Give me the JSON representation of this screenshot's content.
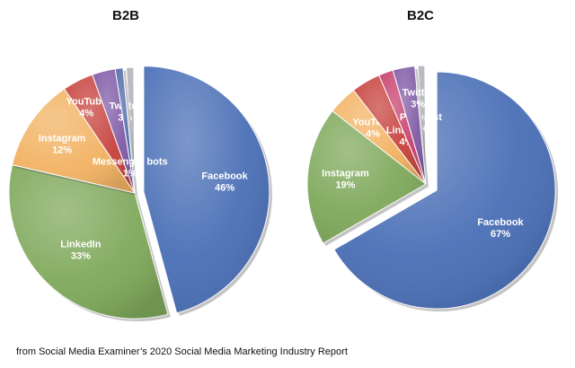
{
  "colors": {
    "facebook": "#4a6fb6",
    "linkedin": "#7ea85a",
    "instagram": "#f2b262",
    "youtube": "#c6413c",
    "twitter": "#7f59a5",
    "pinterest": "#c63e6c",
    "messenger": "#4c67a7",
    "other": "#b9bcc2"
  },
  "chart_data": [
    {
      "type": "pie",
      "title": "B2B",
      "slices": [
        {
          "label": "Facebook",
          "value": 46,
          "value_label": "46%",
          "color_key": "facebook"
        },
        {
          "label": "LinkedIn",
          "value": 33,
          "value_label": "33%",
          "color_key": "linkedin"
        },
        {
          "label": "Instagram",
          "value": 12,
          "value_label": "12%",
          "color_key": "instagram"
        },
        {
          "label": "YouTube",
          "value": 4,
          "value_label": "4%",
          "color_key": "youtube"
        },
        {
          "label": "Twitter",
          "value": 3,
          "value_label": "3%",
          "color_key": "twitter"
        },
        {
          "label": "Messenger bots",
          "value": 1,
          "value_label": "1%",
          "color_key": "messenger"
        }
      ],
      "exploded_slice": "Facebook"
    },
    {
      "type": "pie",
      "title": "B2C",
      "slices": [
        {
          "label": "Facebook",
          "value": 67,
          "value_label": "67%",
          "color_key": "facebook"
        },
        {
          "label": "Instagram",
          "value": 19,
          "value_label": "19%",
          "color_key": "linkedin"
        },
        {
          "label": "YouTube",
          "value": 4,
          "value_label": "4%",
          "color_key": "instagram"
        },
        {
          "label": "LinkedIn",
          "value": 4,
          "value_label": "4%",
          "color_key": "youtube"
        },
        {
          "label": "Pinterest",
          "value": 2,
          "value_label": "2%",
          "color_key": "pinterest"
        },
        {
          "label": "Twitter",
          "value": 3,
          "value_label": "3%",
          "color_key": "twitter"
        }
      ],
      "exploded_slice": "Facebook"
    }
  ],
  "source_note": "from Social Media Examiner’s 2020 Social Media Marketing Industry Report"
}
